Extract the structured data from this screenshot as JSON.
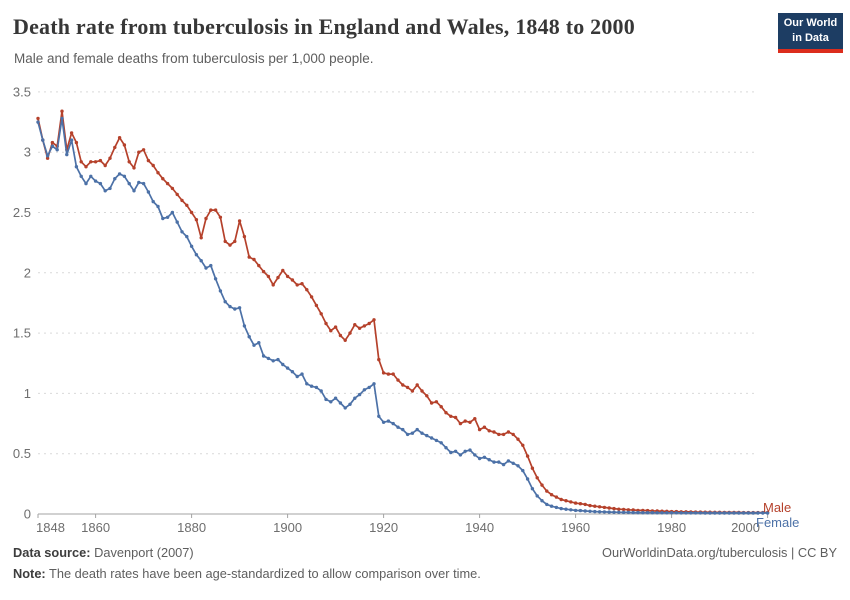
{
  "header": {
    "title": "Death rate from tuberculosis in England and Wales, 1848 to 2000",
    "subtitle": "Male and female deaths from tuberculosis per 1,000 people.",
    "logo": {
      "line1": "Our World",
      "line2": "in Data",
      "bg_color": "#1d3d63",
      "accent_color": "#dc2d1d"
    }
  },
  "chart_data": {
    "type": "line",
    "title": "Death rate from tuberculosis in England and Wales, 1848 to 2000",
    "xlabel": "",
    "ylabel": "",
    "x_years": {
      "start": 1848,
      "end": 2000,
      "step": 1
    },
    "xticks": [
      1848,
      1860,
      1880,
      1900,
      1920,
      1940,
      1960,
      1980,
      2000
    ],
    "yticks": [
      0,
      0.5,
      1,
      1.5,
      2,
      2.5,
      3,
      3.5
    ],
    "ylim": [
      0,
      3.5
    ],
    "grid": "horizontal-dashed",
    "legend_position": "right-end-of-lines",
    "marker": "point-per-year",
    "series": [
      {
        "name": "Male",
        "color": "#b5412b",
        "values": [
          3.28,
          3.1,
          2.95,
          3.08,
          3.05,
          3.34,
          3.02,
          3.16,
          3.08,
          2.92,
          2.88,
          2.92,
          2.92,
          2.93,
          2.89,
          2.95,
          3.04,
          3.12,
          3.06,
          2.92,
          2.87,
          3.0,
          3.02,
          2.93,
          2.89,
          2.83,
          2.78,
          2.74,
          2.7,
          2.65,
          2.6,
          2.56,
          2.5,
          2.44,
          2.29,
          2.45,
          2.52,
          2.52,
          2.46,
          2.26,
          2.23,
          2.26,
          2.43,
          2.3,
          2.13,
          2.11,
          2.06,
          2.01,
          1.97,
          1.9,
          1.96,
          2.02,
          1.97,
          1.94,
          1.9,
          1.91,
          1.86,
          1.8,
          1.73,
          1.66,
          1.58,
          1.52,
          1.55,
          1.48,
          1.44,
          1.5,
          1.57,
          1.54,
          1.56,
          1.58,
          1.61,
          1.28,
          1.17,
          1.16,
          1.16,
          1.11,
          1.07,
          1.05,
          1.02,
          1.07,
          1.02,
          0.98,
          0.92,
          0.93,
          0.89,
          0.84,
          0.81,
          0.8,
          0.75,
          0.77,
          0.76,
          0.79,
          0.7,
          0.72,
          0.69,
          0.68,
          0.66,
          0.66,
          0.68,
          0.66,
          0.62,
          0.57,
          0.48,
          0.38,
          0.3,
          0.24,
          0.19,
          0.16,
          0.14,
          0.12,
          0.11,
          0.1,
          0.09,
          0.085,
          0.08,
          0.07,
          0.065,
          0.06,
          0.055,
          0.05,
          0.045,
          0.04,
          0.038,
          0.035,
          0.033,
          0.03,
          0.03,
          0.028,
          0.026,
          0.025,
          0.023,
          0.022,
          0.02,
          0.02,
          0.018,
          0.018,
          0.017,
          0.016,
          0.016,
          0.015,
          0.015,
          0.014,
          0.014,
          0.013,
          0.013,
          0.013,
          0.013,
          0.012,
          0.012,
          0.012,
          0.012,
          0.012,
          0.012
        ]
      },
      {
        "name": "Female",
        "color": "#4c71a7",
        "values": [
          3.25,
          3.1,
          2.97,
          3.05,
          3.02,
          3.28,
          2.98,
          3.1,
          2.88,
          2.8,
          2.74,
          2.8,
          2.76,
          2.74,
          2.68,
          2.7,
          2.78,
          2.82,
          2.8,
          2.74,
          2.68,
          2.75,
          2.74,
          2.67,
          2.59,
          2.55,
          2.45,
          2.46,
          2.5,
          2.42,
          2.34,
          2.3,
          2.22,
          2.15,
          2.1,
          2.04,
          2.06,
          1.95,
          1.85,
          1.76,
          1.72,
          1.7,
          1.71,
          1.56,
          1.47,
          1.4,
          1.42,
          1.31,
          1.29,
          1.27,
          1.28,
          1.24,
          1.21,
          1.18,
          1.14,
          1.16,
          1.08,
          1.06,
          1.05,
          1.02,
          0.95,
          0.93,
          0.96,
          0.92,
          0.88,
          0.91,
          0.96,
          0.99,
          1.03,
          1.05,
          1.08,
          0.81,
          0.76,
          0.77,
          0.75,
          0.72,
          0.7,
          0.66,
          0.67,
          0.7,
          0.67,
          0.65,
          0.63,
          0.61,
          0.59,
          0.55,
          0.51,
          0.52,
          0.49,
          0.52,
          0.53,
          0.49,
          0.46,
          0.47,
          0.45,
          0.43,
          0.43,
          0.41,
          0.44,
          0.42,
          0.4,
          0.36,
          0.29,
          0.21,
          0.15,
          0.11,
          0.08,
          0.065,
          0.055,
          0.045,
          0.04,
          0.035,
          0.03,
          0.028,
          0.025,
          0.022,
          0.02,
          0.018,
          0.017,
          0.016,
          0.015,
          0.014,
          0.013,
          0.013,
          0.012,
          0.012,
          0.011,
          0.011,
          0.011,
          0.01,
          0.01,
          0.01,
          0.01,
          0.01,
          0.009,
          0.009,
          0.009,
          0.009,
          0.009,
          0.008,
          0.008,
          0.008,
          0.008,
          0.008,
          0.008,
          0.008,
          0.008,
          0.008,
          0.008,
          0.008,
          0.008,
          0.008,
          0.008
        ]
      }
    ]
  },
  "footer": {
    "source_label": "Data source:",
    "source_value": "Davenport (2007)",
    "attribution_link": "OurWorldinData.org/tuberculosis",
    "divider": "|",
    "license_text": "CC BY",
    "note_label": "Note:",
    "note_value": "The death rates have been age-standardized to allow comparison over time."
  }
}
